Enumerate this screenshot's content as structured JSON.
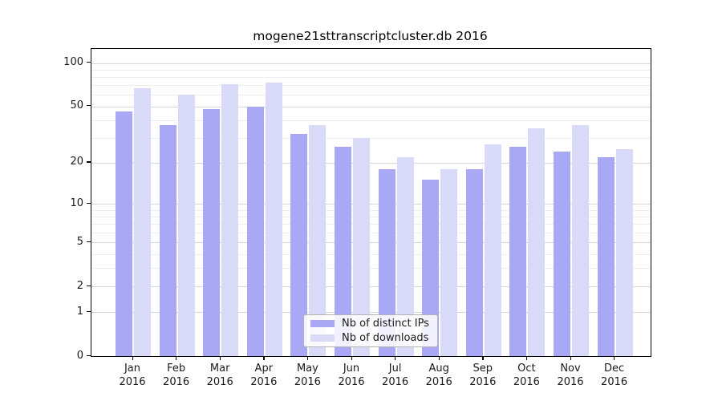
{
  "chart_data": {
    "type": "bar",
    "title": "mogene21sttranscriptcluster.db 2016",
    "categories": [
      "Jan",
      "Feb",
      "Mar",
      "Apr",
      "May",
      "Jun",
      "Jul",
      "Aug",
      "Sep",
      "Oct",
      "Nov",
      "Dec"
    ],
    "category_year": "2016",
    "series": [
      {
        "name": "Nb of distinct IPs",
        "color": "#a8a8f4",
        "values": [
          46,
          37,
          48,
          50,
          32,
          26,
          18,
          15,
          18,
          26,
          24,
          22
        ]
      },
      {
        "name": "Nb of downloads",
        "color": "#d9d9f8",
        "values": [
          67,
          60,
          71,
          73,
          37,
          30,
          22,
          18,
          27,
          35,
          37,
          25
        ]
      }
    ],
    "xlabel": "",
    "ylabel": "",
    "yscale": "log1p",
    "ylim": [
      0,
      125
    ],
    "yticks": [
      0,
      1,
      2,
      5,
      10,
      20,
      50,
      100
    ],
    "minor_gridlines": [
      3,
      4,
      6,
      7,
      8,
      9,
      30,
      40,
      60,
      70,
      80,
      90
    ],
    "grid": true,
    "legend": {
      "position": "lower center",
      "entries": [
        "Nb of distinct IPs",
        "Nb of downloads"
      ]
    }
  },
  "colors": {
    "grid_major": "#d6d6d6",
    "grid_minor": "#ededed",
    "axis": "#000000",
    "text": "#1a1a1a",
    "legend_border": "#b3b3b3"
  }
}
